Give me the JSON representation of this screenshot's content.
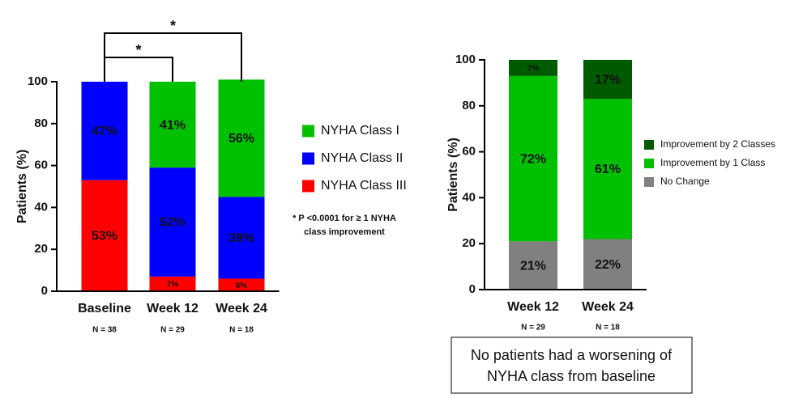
{
  "chart_data": [
    {
      "type": "stacked-bar",
      "y_label": "Patients (%)",
      "categories": [
        "Baseline",
        "Week 12",
        "Week 24"
      ],
      "n_labels": [
        "N = 38",
        "N = 29",
        "N = 18"
      ],
      "series": [
        {
          "name": "NYHA Class III",
          "color": "#ff0000",
          "label_color": "#222222",
          "values": [
            53,
            7,
            6
          ],
          "value_labels": [
            "53%",
            "7%",
            "6%"
          ]
        },
        {
          "name": "NYHA Class II",
          "color": "#0000ff",
          "label_color": "#ffffff",
          "values": [
            47,
            52,
            39
          ],
          "value_labels": [
            "47%",
            "52%",
            "39%"
          ]
        },
        {
          "name": "NYHA Class I",
          "color": "#00c000",
          "label_color": "#222222",
          "values": [
            null,
            41,
            56
          ],
          "value_labels": [
            null,
            "41%",
            "56%"
          ]
        }
      ],
      "ylim": [
        0,
        100
      ],
      "yticks": [
        0,
        20,
        40,
        60,
        80,
        100
      ],
      "brackets": [
        {
          "label": "*"
        },
        {
          "label": "*"
        }
      ],
      "footnote": [
        "* P <0.0001 for ≥ 1 NYHA",
        "class improvement"
      ]
    },
    {
      "type": "stacked-bar",
      "y_label": "Patients (%)",
      "categories": [
        "Week 12",
        "Week 24"
      ],
      "n_labels": [
        "N = 29",
        "N = 18"
      ],
      "series": [
        {
          "name": "No Change",
          "color": "#808080",
          "label_color": "#222222",
          "values": [
            21,
            22
          ],
          "value_labels": [
            "21%",
            "22%"
          ]
        },
        {
          "name": "Improvement by 1 Class",
          "color": "#00c000",
          "label_color": "#222222",
          "values": [
            72,
            61
          ],
          "value_labels": [
            "72%",
            "61%"
          ]
        },
        {
          "name": "Improvement by 2 Classes",
          "color": "#005a00",
          "label_color": "#ffffff",
          "values": [
            7,
            17
          ],
          "value_labels": [
            "7%",
            "17%"
          ]
        }
      ],
      "ylim": [
        0,
        100
      ],
      "yticks": [
        0,
        20,
        40,
        60,
        80,
        100
      ],
      "note": [
        "No patients had a worsening of",
        "NYHA class from baseline"
      ]
    }
  ]
}
